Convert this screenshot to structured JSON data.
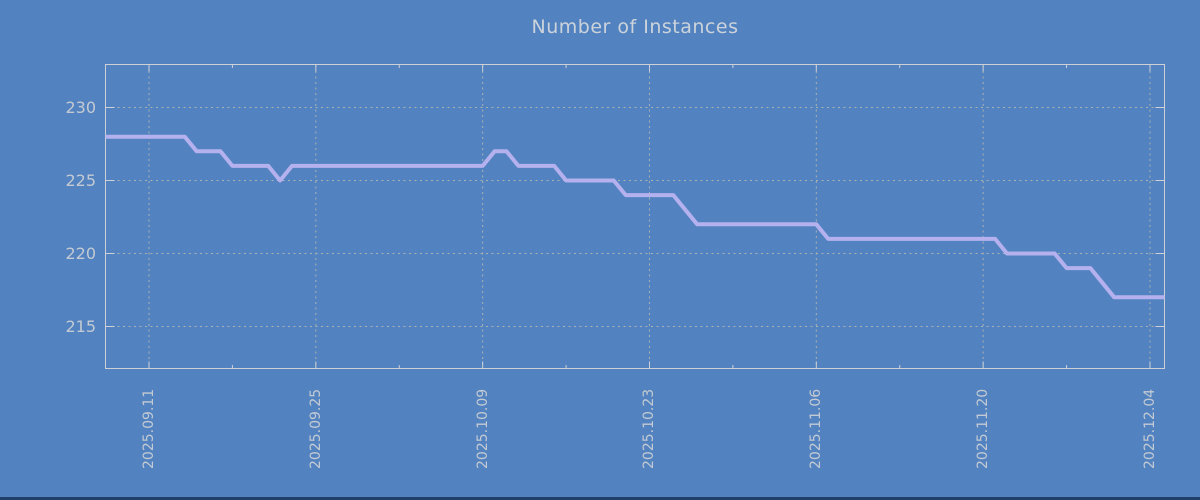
{
  "window": {
    "background_color": "#5283c0",
    "bottom_strip_color": "#20406a"
  },
  "colors": {
    "background": "#5283c0",
    "plot_frame": "#cdd1d6",
    "gridline": "#b4b6b0",
    "title_text": "#ccd3db",
    "tick_text": "#c4cad3",
    "line": "#b5b1ee",
    "bottom_strip": "#20406a"
  },
  "chart_data": {
    "type": "line",
    "title": "Number of Instances",
    "xlabel": "",
    "ylabel": "",
    "grid": true,
    "legend_position": "none",
    "ylim": [
      212,
      233
    ],
    "y_ticks": [
      215,
      220,
      225,
      230
    ],
    "y_tick_labels": [
      "215",
      "220",
      "225",
      "230"
    ],
    "x_tick_labels": [
      "2025.09.11",
      "2025.09.25",
      "2025.10.09",
      "2025.10.23",
      "2025.11.06",
      "2025.11.20",
      "2025.12.04"
    ],
    "x_tick_day_indices": [
      3,
      17,
      31,
      45,
      59,
      73,
      87
    ],
    "x_minor_tick_interval_days": 7,
    "x_start_date": "2025.09.08",
    "x_interval": "daily",
    "series": [
      {
        "name": "instances",
        "color": "#b5b1ee",
        "values": [
          228,
          228,
          228,
          228,
          228,
          228,
          228,
          227,
          227,
          227,
          226,
          226,
          226,
          226,
          225,
          226,
          226,
          226,
          226,
          226,
          226,
          226,
          226,
          226,
          226,
          226,
          226,
          226,
          226,
          226,
          226,
          226,
          227,
          227,
          226,
          226,
          226,
          226,
          225,
          225,
          225,
          225,
          225,
          224,
          224,
          224,
          224,
          224,
          223,
          222,
          222,
          222,
          222,
          222,
          222,
          222,
          222,
          222,
          222,
          222,
          221,
          221,
          221,
          221,
          221,
          221,
          221,
          221,
          221,
          221,
          221,
          221,
          221,
          221,
          221,
          220,
          220,
          220,
          220,
          220,
          219,
          219,
          219,
          218,
          217,
          217,
          217,
          217,
          217
        ]
      }
    ]
  }
}
